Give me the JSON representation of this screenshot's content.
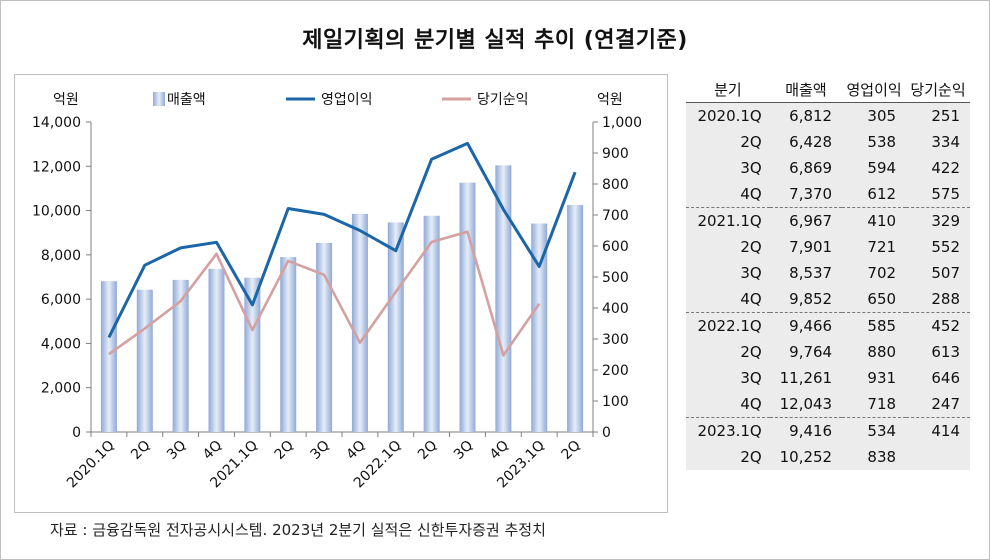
{
  "title": "제일기획의 분기별 실적 추이 (연결기준)",
  "chart_data": {
    "type": "bar",
    "categories": [
      "2020.1Q",
      "2Q",
      "3Q",
      "4Q",
      "2021.1Q",
      "2Q",
      "3Q",
      "4Q",
      "2022.1Q",
      "2Q",
      "3Q",
      "4Q",
      "2023.1Q",
      "2Q"
    ],
    "series": [
      {
        "name": "매출액",
        "type": "bar",
        "axis": "left",
        "color": "#9db6dc",
        "values": [
          6812,
          6428,
          6869,
          7370,
          6967,
          7901,
          8537,
          9852,
          9466,
          9764,
          11261,
          12043,
          9416,
          10252
        ]
      },
      {
        "name": "영업이익",
        "type": "line",
        "axis": "right",
        "color": "#1c66a8",
        "values": [
          305,
          538,
          594,
          612,
          410,
          721,
          702,
          650,
          585,
          880,
          931,
          718,
          534,
          838
        ]
      },
      {
        "name": "당기순익",
        "type": "line",
        "axis": "right",
        "color": "#d4a1a0",
        "values": [
          251,
          334,
          422,
          575,
          329,
          552,
          507,
          288,
          452,
          613,
          646,
          247,
          414,
          null
        ]
      }
    ],
    "y_left": {
      "label": "억원",
      "min": 0,
      "max": 14000,
      "ticks": [
        "0",
        "2,000",
        "4,000",
        "6,000",
        "8,000",
        "10,000",
        "12,000",
        "14,000"
      ]
    },
    "y_right": {
      "label": "억원",
      "min": 0,
      "max": 1000,
      "ticks": [
        "0",
        "100",
        "200",
        "300",
        "400",
        "500",
        "600",
        "700",
        "800",
        "900",
        "1,000"
      ]
    },
    "legend_position": "top",
    "grid": false
  },
  "table": {
    "headers": [
      "분기",
      "매출액",
      "영업이익",
      "당기순익"
    ],
    "rows": [
      [
        "2020.1Q",
        "6,812",
        "305",
        "251"
      ],
      [
        "2Q",
        "6,428",
        "538",
        "334"
      ],
      [
        "3Q",
        "6,869",
        "594",
        "422"
      ],
      [
        "4Q",
        "7,370",
        "612",
        "575"
      ],
      [
        "2021.1Q",
        "6,967",
        "410",
        "329"
      ],
      [
        "2Q",
        "7,901",
        "721",
        "552"
      ],
      [
        "3Q",
        "8,537",
        "702",
        "507"
      ],
      [
        "4Q",
        "9,852",
        "650",
        "288"
      ],
      [
        "2022.1Q",
        "9,466",
        "585",
        "452"
      ],
      [
        "2Q",
        "9,764",
        "880",
        "613"
      ],
      [
        "3Q",
        "11,261",
        "931",
        "646"
      ],
      [
        "4Q",
        "12,043",
        "718",
        "247"
      ],
      [
        "2023.1Q",
        "9,416",
        "534",
        "414"
      ],
      [
        "2Q",
        "10,252",
        "838",
        ""
      ]
    ]
  },
  "note": "자료 : 금융감독원 전자공시시스템. 2023년 2분기 실적은 신한투자증권 추정치"
}
